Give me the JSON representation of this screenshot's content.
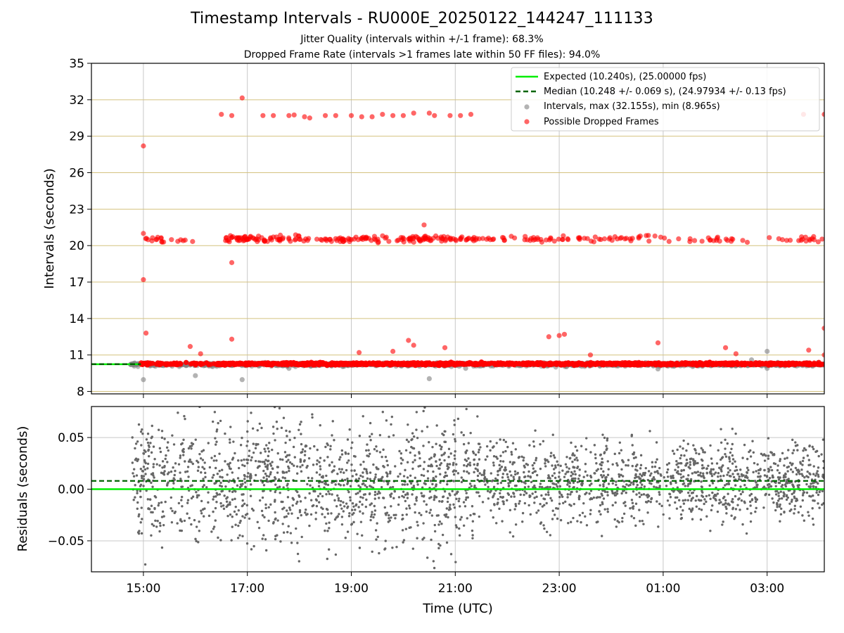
{
  "chart_data": [
    {
      "type": "scatter",
      "title": "Timestamp Intervals - RU000E_20250122_144247_111133",
      "subtitle_lines": [
        "Jitter Quality (intervals within +/-1 frame): 68.3%",
        "Dropped Frame Rate (intervals >1 frames late within 50 FF files): 94.0%"
      ],
      "ylabel": "Intervals (seconds)",
      "xlabel": "",
      "x_axis": "Time (UTC), hours since 00:00 on first day (15 = 15:00, 27 = 03:00 next day)",
      "xlim": [
        14.0,
        28.1
      ],
      "ylim": [
        7.8,
        35.0
      ],
      "yticks": [
        8,
        11,
        14,
        17,
        20,
        23,
        26,
        29,
        32,
        35
      ],
      "ytick_labels": [
        "8",
        "11",
        "14",
        "17",
        "20",
        "23",
        "26",
        "29",
        "32",
        "35"
      ],
      "grid": "vertical gray at x ticks, horizontal gold at y ticks",
      "legend_position": "top-right",
      "legend": [
        "Expected (10.240s), (25.00000 fps)",
        "Median (10.248 +/- 0.069 s), (24.97934 +/- 0.13 fps)",
        "Intervals, max (32.155s), min (8.965s)",
        "Possible Dropped Frames"
      ],
      "expected_interval": 10.24,
      "median_interval": 10.248,
      "series": [
        {
          "name": "Intervals, max (32.155s), min (8.965s)",
          "color": "#808080",
          "notes": "dense band ~10.0-10.5 s across full time range; sparse outliers",
          "points": [
            [
              14.8,
              10.25
            ],
            [
              14.9,
              10.3
            ],
            [
              15.0,
              8.97
            ],
            [
              16.0,
              9.3
            ],
            [
              16.2,
              10.3
            ],
            [
              16.9,
              8.97
            ],
            [
              17.8,
              9.9
            ],
            [
              20.5,
              9.05
            ],
            [
              21.2,
              9.9
            ],
            [
              24.9,
              9.85
            ],
            [
              26.7,
              10.6
            ],
            [
              27.0,
              11.3
            ],
            [
              27.0,
              9.9
            ]
          ]
        },
        {
          "name": "Possible Dropped Frames",
          "color": "#ff0000",
          "notes": "dense band ~10.25 s, cluster ~20.5 s, cluster ~30.7 s",
          "points": [
            [
              15.0,
              28.2
            ],
            [
              15.0,
              17.2
            ],
            [
              15.0,
              21.0
            ],
            [
              15.05,
              12.8
            ],
            [
              15.9,
              11.7
            ],
            [
              16.1,
              11.1
            ],
            [
              16.7,
              18.6
            ],
            [
              16.7,
              12.3
            ],
            [
              16.9,
              32.15
            ],
            [
              19.15,
              11.2
            ],
            [
              19.8,
              11.3
            ],
            [
              20.1,
              12.2
            ],
            [
              20.2,
              11.8
            ],
            [
              20.4,
              21.7
            ],
            [
              20.8,
              11.6
            ],
            [
              22.8,
              12.5
            ],
            [
              23.0,
              12.6
            ],
            [
              23.1,
              12.7
            ],
            [
              23.6,
              11.0
            ],
            [
              24.9,
              12.0
            ],
            [
              26.2,
              11.6
            ],
            [
              26.4,
              11.1
            ],
            [
              27.8,
              11.4
            ],
            [
              28.1,
              13.2
            ],
            [
              28.1,
              11.0
            ],
            [
              16.5,
              30.8
            ],
            [
              16.7,
              30.7
            ],
            [
              17.3,
              30.7
            ],
            [
              17.5,
              30.7
            ],
            [
              17.8,
              30.7
            ],
            [
              17.9,
              30.75
            ],
            [
              18.1,
              30.6
            ],
            [
              18.2,
              30.5
            ],
            [
              18.5,
              30.7
            ],
            [
              18.7,
              30.7
            ],
            [
              19.0,
              30.7
            ],
            [
              19.2,
              30.6
            ],
            [
              19.4,
              30.6
            ],
            [
              19.6,
              30.8
            ],
            [
              19.8,
              30.7
            ],
            [
              20.0,
              30.7
            ],
            [
              20.2,
              30.9
            ],
            [
              20.5,
              30.9
            ],
            [
              20.6,
              30.7
            ],
            [
              20.9,
              30.7
            ],
            [
              21.1,
              30.7
            ],
            [
              21.3,
              30.8
            ],
            [
              27.7,
              30.8
            ],
            [
              28.1,
              30.8
            ]
          ]
        }
      ]
    },
    {
      "type": "scatter",
      "ylabel": "Residuals (seconds)",
      "xlabel": "Time (UTC)",
      "xlim": [
        14.0,
        28.1
      ],
      "ylim": [
        -0.08,
        0.08
      ],
      "yticks": [
        -0.05,
        0.0,
        0.05
      ],
      "ytick_labels": [
        "−0.05",
        "0.00",
        "0.05"
      ],
      "xticks": [
        15,
        17,
        19,
        21,
        23,
        25,
        27
      ],
      "xtick_labels": [
        "15:00",
        "17:00",
        "19:00",
        "21:00",
        "23:00",
        "01:00",
        "03:00"
      ],
      "grid": "gray grid at ticks",
      "expected_line": 0.0,
      "median_line": 0.008,
      "series": [
        {
          "name": "Residuals",
          "color": "#666666",
          "notes": "dense scatter between -0.08 and 0.08 spanning 14.8 to 28.1 h, tighter near 0 after ~21:30"
        }
      ]
    }
  ],
  "colors": {
    "expected": "#00ee00",
    "median": "#006400",
    "intervals": "#808080",
    "dropped": "#ff0000",
    "hgrid_top": "#d4c27f",
    "vgrid": "#c8c8c8"
  }
}
